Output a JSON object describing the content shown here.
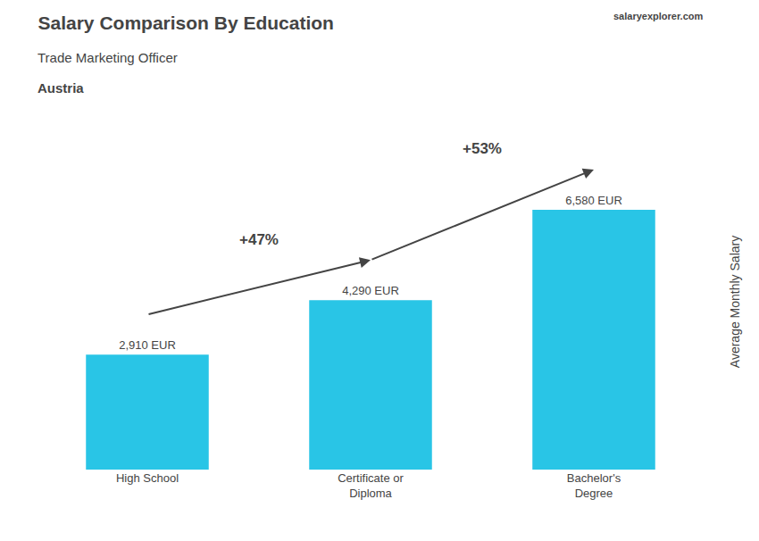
{
  "chart_data": {
    "type": "bar",
    "title": "Salary Comparison By Education",
    "subtitle": "Trade Marketing Officer",
    "categories": [
      "High School",
      "Certificate or\nDiploma",
      "Bachelor's\nDegree"
    ],
    "values": [
      2910,
      4290,
      6580
    ],
    "value_labels": [
      "2,910 EUR",
      "4,290 EUR",
      "6,580 EUR"
    ],
    "data_labels": true,
    "color": "#29c5e6",
    "ylabel": "Average Monthly Salary",
    "ylim": [
      0,
      8500
    ],
    "tick_labels": "x",
    "grid": false,
    "annotations": [
      {
        "text": "Austria"
      },
      {
        "text": "salaryexplorer.com"
      },
      {
        "text": "+47%",
        "between": [
          0,
          1
        ]
      },
      {
        "text": "+53%",
        "between": [
          1,
          2
        ]
      }
    ]
  }
}
